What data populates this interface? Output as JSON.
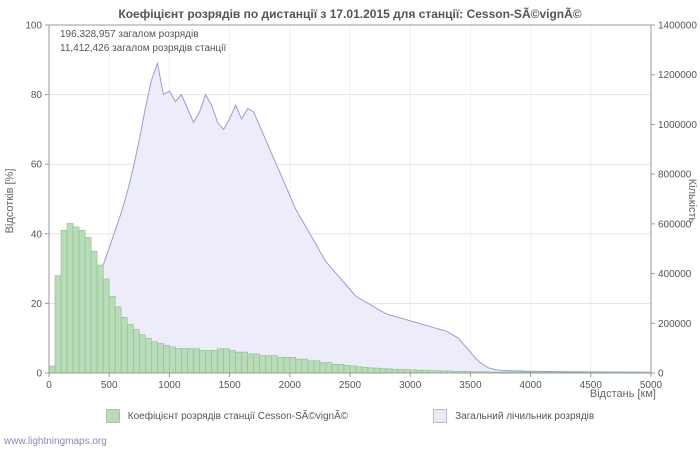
{
  "title": "Коефіцієнт розрядів по дистанції з 17.01.2015 для станції: Cesson-SÃ©vignÃ©",
  "annotations": {
    "line1": "196,328,957 загалом розрядів",
    "line2": "11,412,426 загалом розрядів станції"
  },
  "axes": {
    "left_label": "Відсотків  [%]",
    "right_label": "Кількість",
    "x_label": "Відстань   [км]"
  },
  "legend": {
    "items": [
      {
        "label": "Коефіцієнт розрядів станції Cesson-SÃ©vignÃ©",
        "swatch": "station_fill"
      },
      {
        "label": "Загальний лічильник розрядів",
        "swatch": "total_fill"
      }
    ]
  },
  "footer": {
    "link": "www.lightningmaps.org"
  },
  "chart_data": {
    "type": "area",
    "title": "Коефіцієнт розрядів по дистанції з 17.01.2015 для станції: Cesson-SÃ©vignÃ©",
    "xlabel": "Відстань [км]",
    "ylabel_left": "Відсотків [%]",
    "ylabel_right": "Кількість",
    "grid": true,
    "legend_position": "bottom",
    "x_range": [
      0,
      5000
    ],
    "y_left_range": [
      0,
      100
    ],
    "y_right_range": [
      0,
      1400000
    ],
    "x_ticks": [
      0,
      500,
      1000,
      1500,
      2000,
      2500,
      3000,
      3500,
      4000,
      4500,
      5000
    ],
    "y_left_ticks": [
      0,
      20,
      40,
      60,
      80,
      100
    ],
    "y_right_ticks": [
      0,
      200000,
      400000,
      600000,
      800000,
      1000000,
      1200000,
      1400000
    ],
    "x_start": 0,
    "x_step": 50,
    "colors": {
      "station_fill": "#b7dcb7",
      "station_stroke": "#8fbf8f",
      "total_fill": "#ebebf8",
      "total_stroke": "#9b9bd4"
    },
    "series": [
      {
        "name": "Коефіцієнт розрядів станції Cesson-SÃ©vignÃ©",
        "axis": "left",
        "style": "bars",
        "values": [
          2,
          28,
          41,
          43,
          42,
          41,
          39,
          35,
          31,
          27,
          22,
          19,
          16,
          14,
          12.5,
          11,
          10,
          9,
          8.5,
          8,
          7.5,
          7,
          7,
          7,
          7,
          6.5,
          6.5,
          6.5,
          7,
          7,
          6.5,
          6,
          6,
          5.5,
          5.5,
          5,
          5,
          5,
          4.5,
          4.5,
          4.5,
          4,
          4,
          3.5,
          3.5,
          3,
          3,
          2.5,
          2.5,
          2.2,
          2,
          1.8,
          1.6,
          1.5,
          1.4,
          1.3,
          1.2,
          1.1,
          1,
          1,
          0.9,
          0.8,
          0.8,
          0.7,
          0.7,
          0.6,
          0.6,
          0.5,
          0.5,
          0.5,
          0.4,
          0.4,
          0.4,
          0.3,
          0.3,
          0.3,
          0.3,
          0.3,
          0.3,
          0.3,
          0.3,
          0.3,
          0.3,
          0.3,
          0.2,
          0.2,
          0.2,
          0.2,
          0.2,
          0.2,
          0.2,
          0.2,
          0.2,
          0.2,
          0.2,
          0.2,
          0.2,
          0.2,
          0.2,
          0.2,
          0.2
        ]
      },
      {
        "name": "Загальний лічильник розрядів",
        "axis": "right",
        "style": "area-line",
        "values": [
          0,
          28000,
          56000,
          98000,
          140000,
          182000,
          238000,
          294000,
          364000,
          434000,
          504000,
          574000,
          644000,
          728000,
          826000,
          938000,
          1064000,
          1176000,
          1246000,
          1120000,
          1134000,
          1092000,
          1120000,
          1064000,
          1008000,
          1050000,
          1120000,
          1078000,
          1008000,
          980000,
          1022000,
          1078000,
          1022000,
          1064000,
          1050000,
          994000,
          938000,
          882000,
          826000,
          770000,
          714000,
          658000,
          616000,
          574000,
          532000,
          490000,
          448000,
          420000,
          392000,
          364000,
          336000,
          308000,
          294000,
          280000,
          266000,
          252000,
          238000,
          231000,
          224000,
          217000,
          210000,
          203000,
          196000,
          189000,
          182000,
          175000,
          168000,
          154000,
          140000,
          112000,
          84000,
          56000,
          35000,
          21000,
          14000,
          11200,
          9800,
          8400,
          8400,
          7000,
          7000,
          6500,
          6000,
          6000,
          5500,
          5500,
          5000,
          5000,
          5000,
          4500,
          4500,
          4500,
          4000,
          4000,
          4000,
          4000,
          3500,
          3500,
          3500,
          3000,
          3000
        ]
      }
    ]
  }
}
